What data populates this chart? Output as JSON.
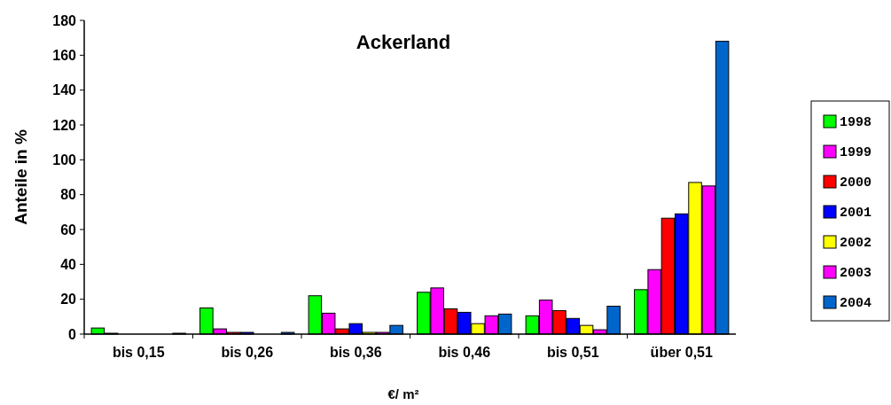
{
  "chart_data": {
    "type": "bar",
    "title": "Ackerland",
    "xlabel": "€/ m²",
    "ylabel": "Anteile  in %",
    "categories": [
      "bis 0,15",
      "bis 0,26",
      "bis 0,36",
      "bis 0,46",
      "bis 0,51",
      "über 0,51"
    ],
    "series": [
      {
        "name": "1998",
        "color": "#00ff00",
        "values": [
          3.5,
          15,
          22,
          24,
          10.5,
          25.5
        ]
      },
      {
        "name": "1999",
        "color": "#ff00ff",
        "values": [
          0.5,
          3,
          12,
          26.5,
          19.5,
          37
        ]
      },
      {
        "name": "2000",
        "color": "#ff0000",
        "values": [
          0,
          1,
          3,
          14.5,
          13.5,
          66.5
        ]
      },
      {
        "name": "2001",
        "color": "#0000ff",
        "values": [
          0,
          1,
          6,
          12.5,
          9,
          69
        ]
      },
      {
        "name": "2002",
        "color": "#ffff00",
        "values": [
          0,
          0,
          1,
          6,
          5,
          87
        ]
      },
      {
        "name": "2003",
        "color": "#ff00ff",
        "values": [
          0,
          0,
          1,
          10.5,
          2.5,
          85
        ]
      },
      {
        "name": "2004",
        "color": "#0066cc",
        "values": [
          0.5,
          1,
          5,
          11.5,
          16,
          168
        ]
      }
    ],
    "ylim": [
      0,
      180
    ],
    "yticks": [
      0,
      20,
      40,
      60,
      80,
      100,
      120,
      140,
      160,
      180
    ],
    "grid": false,
    "legend": "right"
  }
}
